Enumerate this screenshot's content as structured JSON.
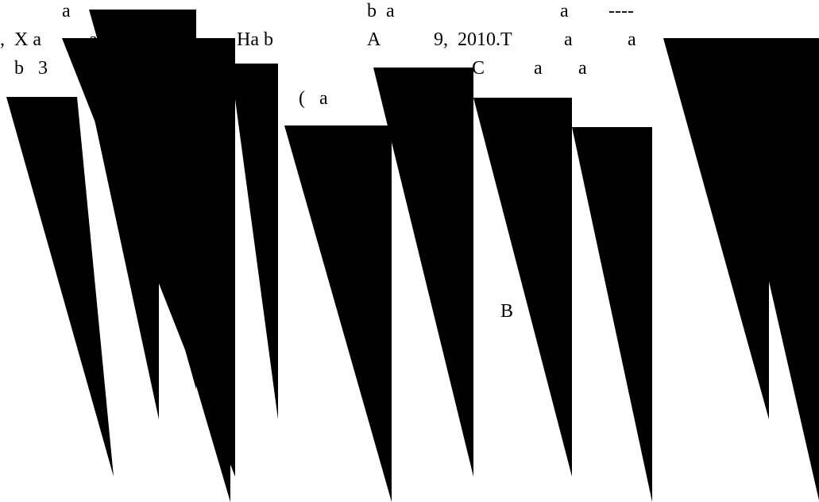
{
  "text_fragments": [
    {
      "id": "frag-1",
      "text": "a"
    },
    {
      "id": "frag-2",
      "text": "b  a"
    },
    {
      "id": "frag-3",
      "text": "a"
    },
    {
      "id": "frag-4",
      "text": "----"
    },
    {
      "id": "frag-5",
      "text": ",  X a"
    },
    {
      "id": "frag-6",
      "text": "a"
    },
    {
      "id": "frag-7",
      "text": "Ha b"
    },
    {
      "id": "frag-8",
      "text": "A"
    },
    {
      "id": "frag-9",
      "text": "9,  2010.T"
    },
    {
      "id": "frag-10",
      "text": "a"
    },
    {
      "id": "frag-11",
      "text": "a"
    },
    {
      "id": "frag-12",
      "text": "b   3"
    },
    {
      "id": "frag-13",
      "text": "C"
    },
    {
      "id": "frag-14",
      "text": "a"
    },
    {
      "id": "frag-15",
      "text": "a"
    },
    {
      "id": "frag-16",
      "text": "(   a"
    },
    {
      "id": "frag-17",
      "text": "B"
    }
  ],
  "colors": {
    "ink": "#000000",
    "paper": "#ffffff"
  }
}
